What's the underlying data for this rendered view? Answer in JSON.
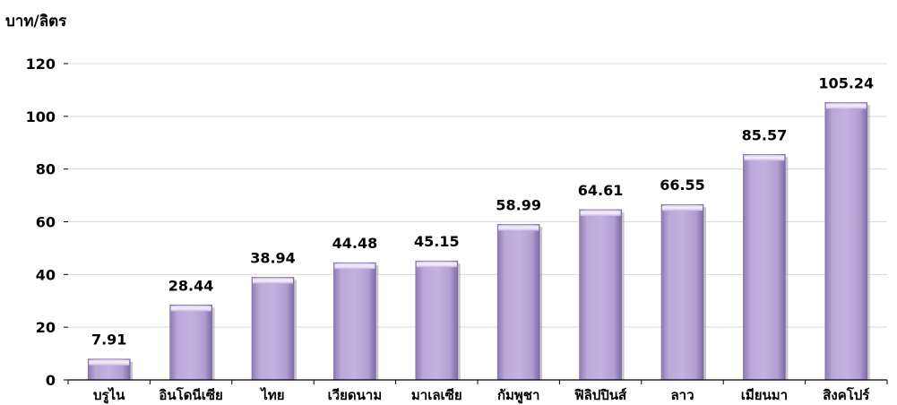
{
  "chart_data": {
    "type": "bar",
    "ylabel": "บาท/ลิตร",
    "categories": [
      "บรูไน",
      "อินโดนีเซีย",
      "ไทย",
      "เวียดนาม",
      "มาเลเซีย",
      "กัมพูชา",
      "ฟิลิปปินส์",
      "ลาว",
      "เมียนมา",
      "สิงคโปร์"
    ],
    "values": [
      7.91,
      28.44,
      38.94,
      44.48,
      45.15,
      58.99,
      64.61,
      66.55,
      85.57,
      105.24
    ],
    "value_labels": [
      "7.91",
      "28.44",
      "38.94",
      "44.48",
      "45.15",
      "58.99",
      "64.61",
      "66.55",
      "85.57",
      "105.24"
    ],
    "ylim": [
      0,
      120
    ],
    "yticks": [
      "0",
      "20",
      "40",
      "60",
      "80",
      "100",
      "120"
    ],
    "grid": true,
    "bar_color": "#B4A3D4"
  }
}
